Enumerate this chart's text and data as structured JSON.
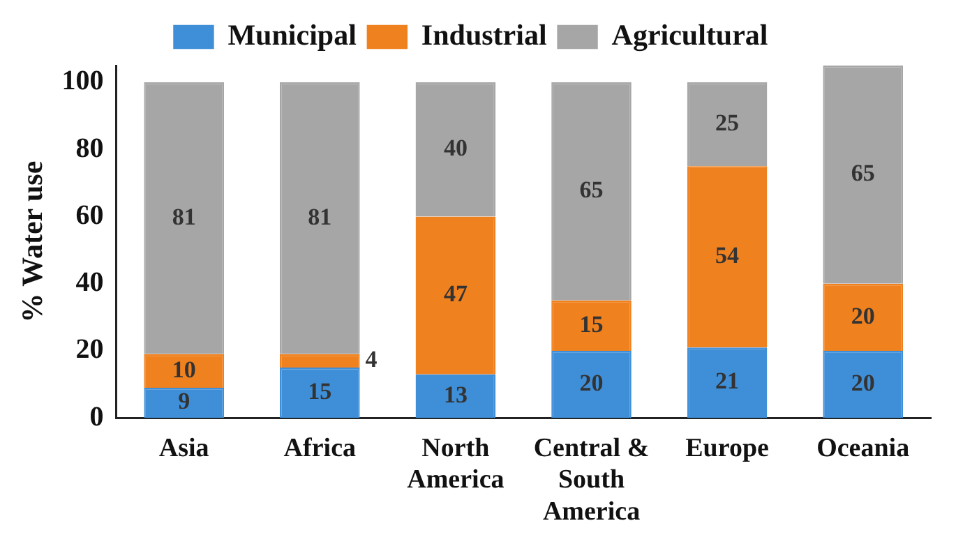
{
  "chart_data": {
    "type": "bar",
    "stacked": true,
    "ylabel": "% Water use",
    "categories": [
      "Asia",
      "Africa",
      "North America",
      "Central & South America",
      "Europe",
      "Oceania"
    ],
    "series": [
      {
        "name": "Municipal",
        "color": "#3f8fd8",
        "values": [
          9,
          15,
          13,
          20,
          21,
          20
        ]
      },
      {
        "name": "Industrial",
        "color": "#f0811f",
        "values": [
          10,
          4,
          47,
          15,
          54,
          20
        ]
      },
      {
        "name": "Agricultural",
        "color": "#a6a6a6",
        "values": [
          81,
          81,
          40,
          65,
          25,
          65
        ]
      }
    ],
    "ylim": [
      0,
      105
    ],
    "yticks": [
      0,
      20,
      40,
      60,
      80,
      100
    ],
    "grid": false,
    "legend": "top",
    "data_labels": true
  }
}
